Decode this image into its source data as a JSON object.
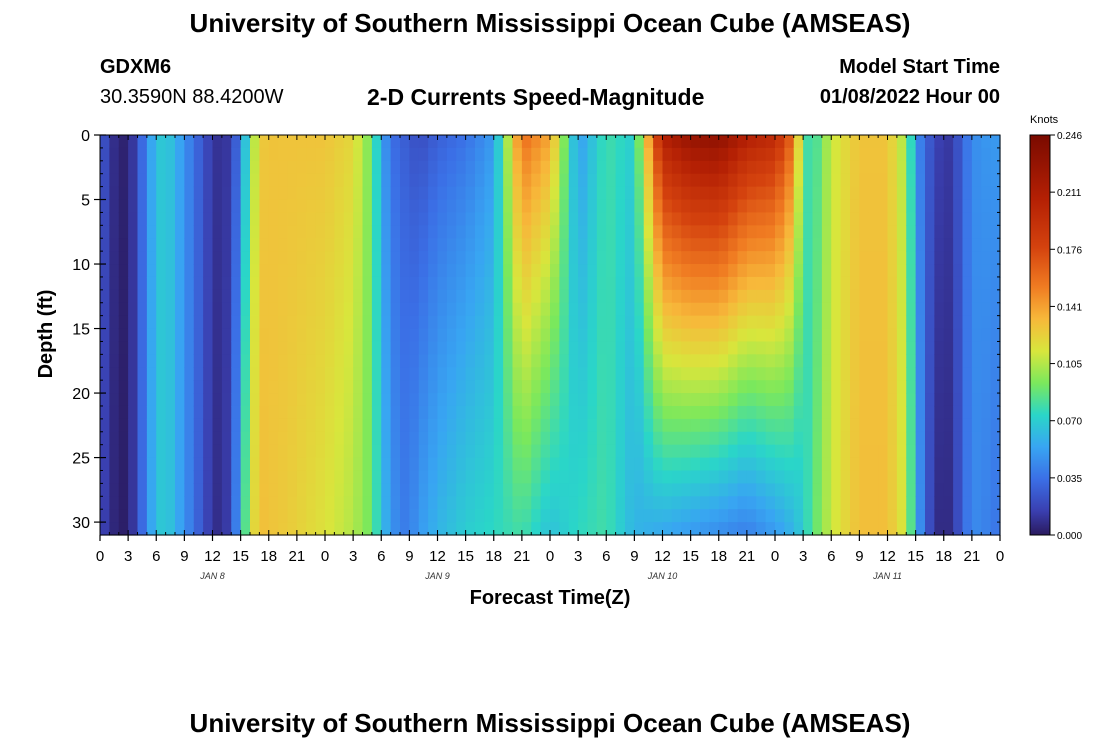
{
  "header": {
    "title": "University of Southern Mississippi Ocean Cube (AMSEAS)",
    "station_id": "GDXM6",
    "coordinates": "30.3590N  88.4200W",
    "chart_title": "2-D Currents Speed-Magnitude",
    "model_start_label": "Model Start Time",
    "model_start_value": "01/08/2022 Hour 00"
  },
  "footer": {
    "title": "University of Southern Mississippi Ocean Cube (AMSEAS)"
  },
  "chart_data": {
    "type": "heatmap",
    "title": "2-D Currents Speed-Magnitude",
    "xlabel": "Forecast Time(Z)",
    "ylabel": "Depth (ft)",
    "x_range_hours": [
      0,
      96
    ],
    "y_range_ft": [
      0,
      31
    ],
    "x_tick_labels": [
      "0",
      "3",
      "6",
      "9",
      "12",
      "15",
      "18",
      "21",
      "0",
      "3",
      "6",
      "9",
      "12",
      "15",
      "18",
      "21",
      "0",
      "3",
      "6",
      "9",
      "12",
      "15",
      "18",
      "21",
      "0",
      "3",
      "6",
      "9",
      "12",
      "15",
      "18",
      "21",
      "0"
    ],
    "day_labels": [
      {
        "label": "JAN 8",
        "hour": 12
      },
      {
        "label": "JAN 9",
        "hour": 36
      },
      {
        "label": "JAN 10",
        "hour": 60
      },
      {
        "label": "JAN 11",
        "hour": 84
      }
    ],
    "y_ticks": [
      0,
      5,
      10,
      15,
      20,
      25,
      30
    ],
    "y_tick_labels": [
      "0",
      "5",
      "10",
      "15",
      "20",
      "25",
      "30"
    ],
    "colorbar": {
      "unit": "Knots",
      "min": 0.0,
      "max": 0.246,
      "ticks": [
        "0.246",
        "0.211",
        "0.176",
        "0.141",
        "0.105",
        "0.070",
        "0.035",
        "0.000"
      ]
    },
    "speed_profile_knots": {
      "hours": [
        0,
        1,
        2,
        3,
        4,
        5,
        6,
        7,
        8,
        10,
        12,
        13,
        14,
        15,
        16,
        17,
        18,
        20,
        24,
        27,
        29,
        30,
        31,
        32,
        33,
        34,
        36,
        39,
        42,
        45,
        48,
        51,
        54,
        57,
        60,
        63,
        66,
        69,
        72,
        74,
        75,
        76,
        78,
        81,
        84,
        86,
        87,
        88,
        89,
        90,
        91,
        92,
        93,
        95,
        96
      ],
      "surface": [
        0.03,
        0.012,
        0.004,
        0.003,
        0.02,
        0.045,
        0.065,
        0.07,
        0.06,
        0.035,
        0.012,
        0.008,
        0.015,
        0.04,
        0.09,
        0.125,
        0.128,
        0.128,
        0.128,
        0.12,
        0.09,
        0.055,
        0.035,
        0.03,
        0.025,
        0.02,
        0.028,
        0.035,
        0.05,
        0.16,
        0.14,
        0.05,
        0.08,
        0.07,
        0.21,
        0.23,
        0.235,
        0.21,
        0.2,
        0.16,
        0.085,
        0.075,
        0.11,
        0.128,
        0.128,
        0.1,
        0.05,
        0.03,
        0.02,
        0.01,
        0.015,
        0.03,
        0.045,
        0.05,
        0.05
      ],
      "bottom": [
        0.02,
        0.008,
        0.002,
        0.002,
        0.02,
        0.045,
        0.065,
        0.07,
        0.06,
        0.035,
        0.01,
        0.006,
        0.02,
        0.06,
        0.11,
        0.13,
        0.128,
        0.125,
        0.115,
        0.105,
        0.09,
        0.065,
        0.05,
        0.04,
        0.04,
        0.05,
        0.06,
        0.07,
        0.075,
        0.08,
        0.065,
        0.075,
        0.08,
        0.06,
        0.055,
        0.05,
        0.045,
        0.04,
        0.05,
        0.06,
        0.07,
        0.085,
        0.11,
        0.13,
        0.13,
        0.11,
        0.06,
        0.03,
        0.01,
        0.004,
        0.01,
        0.03,
        0.045,
        0.04,
        0.035
      ]
    }
  }
}
